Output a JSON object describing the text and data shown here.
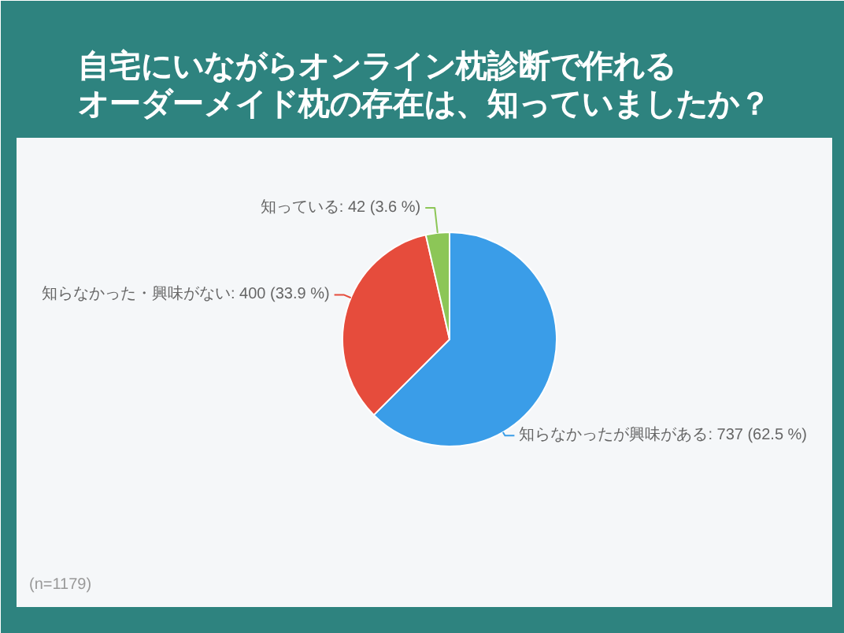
{
  "chart_data": {
    "type": "pie",
    "title": "自宅にいながらオンライン枕診断で作れるオーダーメイド枕の存在は、知っていましたか？",
    "categories": [
      "知らなかったが興味がある",
      "知らなかった・興味がない",
      "知っている"
    ],
    "values": [
      737,
      400,
      42
    ],
    "colors": [
      "#3a9de8",
      "#e64c3c",
      "#8cc657"
    ],
    "value_labels": [
      "737 (62.5 %)",
      "400 (33.9 %)",
      "42 (3.6 %)"
    ],
    "annotations": [
      "(n=1179)"
    ]
  }
}
